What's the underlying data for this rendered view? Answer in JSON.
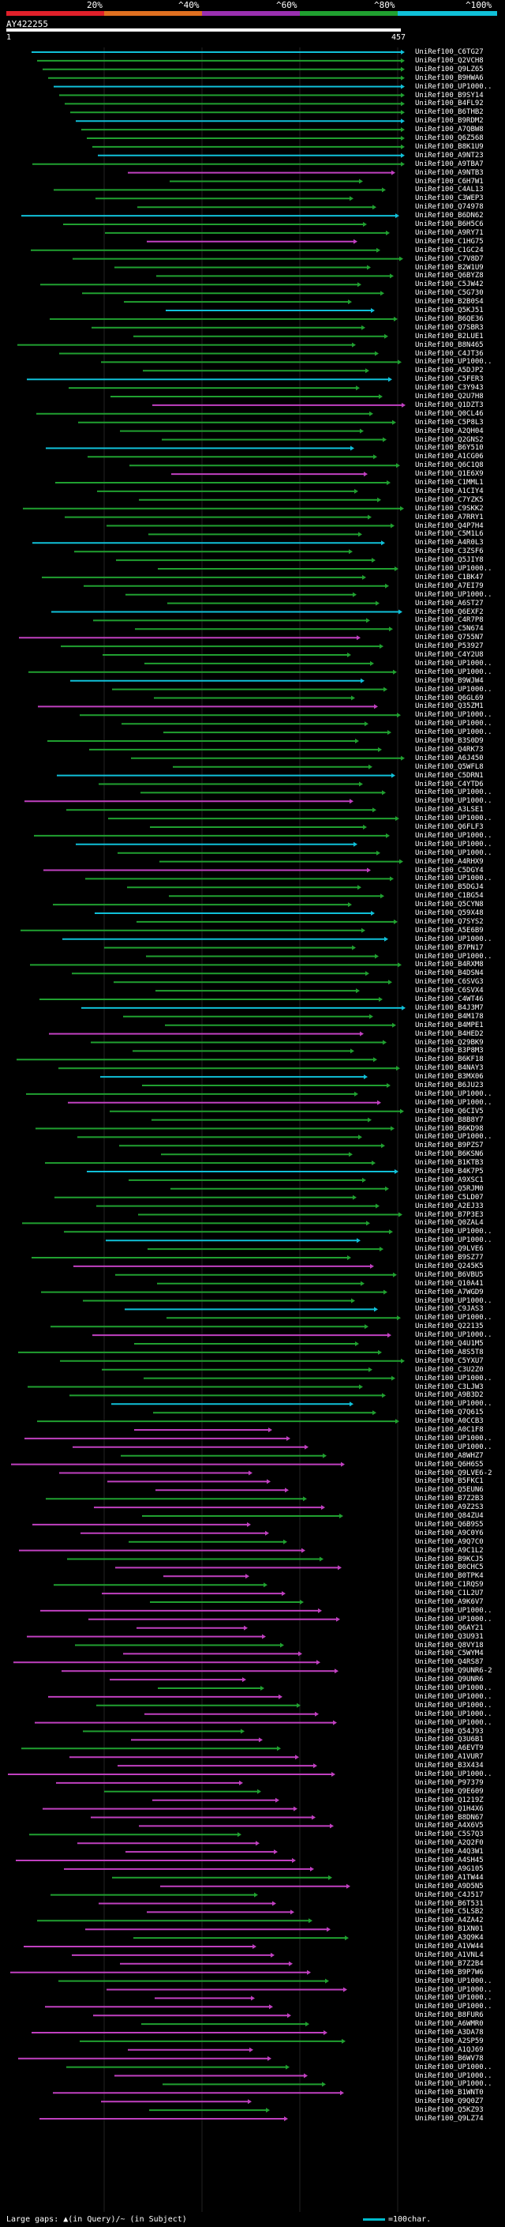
{
  "query": {
    "id": "AY422255",
    "start": "1",
    "end": "457"
  },
  "identity_scale": {
    "ticks": [
      "20%",
      "^40%",
      "^60%",
      "^80%",
      "^100%"
    ],
    "colors": [
      "#e0202a",
      "#e07020",
      "#9a30b0",
      "#20a030",
      "#10c0d8"
    ]
  },
  "hits": [
    "UniRef100_C6TG27",
    "UniRef100_Q2VCH8",
    "UniRef100_Q9LZ65",
    "UniRef100_B9HWA6",
    "UniRef100_UP1000..",
    "UniRef100_B9SY14",
    "UniRef100_B4FL92",
    "UniRef100_B6THB2",
    "UniRef100_B9RDM2",
    "UniRef100_A7QBW8",
    "UniRef100_Q6Z568",
    "UniRef100_B8K1U9",
    "UniRef100_A9NT23",
    "UniRef100_A9TBA7",
    "UniRef100_A9NTB3",
    "UniRef100_C6H7W1",
    "UniRef100_C4AL13",
    "UniRef100_C3WEP3",
    "UniRef100_Q74978",
    "UniRef100_B6DN62",
    "UniRef100_B6H5C6",
    "UniRef100_A9RY71",
    "UniRef100_C1HG75",
    "UniRef100_C1GC24",
    "UniRef100_C7V8D7",
    "UniRef100_B2W1U9",
    "UniRef100_Q6BYZ8",
    "UniRef100_C5JW42",
    "UniRef100_C5G730",
    "UniRef100_B2B0S4",
    "UniRef100_Q5KJ51",
    "UniRef100_B6QE36",
    "UniRef100_Q7SBR3",
    "UniRef100_B2LUE1",
    "UniRef100_B8N465",
    "UniRef100_C4JT36",
    "UniRef100_UP1000..",
    "UniRef100_A5DJP2",
    "UniRef100_C5FER3",
    "UniRef100_C3Y943",
    "UniRef100_Q2U7H8",
    "UniRef100_Q1DZT3",
    "UniRef100_Q0CL46",
    "UniRef100_C5P8L3",
    "UniRef100_A2QH04",
    "UniRef100_Q2GNS2",
    "UniRef100_B6Y510",
    "UniRef100_A1CG06",
    "UniRef100_Q6C1Q8",
    "UniRef100_Q1E6X9",
    "UniRef100_C1MML1",
    "UniRef100_A1CIY4",
    "UniRef100_C7YZK5",
    "UniRef100_C9SKK2",
    "UniRef100_A7RRY1",
    "UniRef100_Q4P7H4",
    "UniRef100_C5M1L6",
    "UniRef100_A4R0L3",
    "UniRef100_C3ZSF6",
    "UniRef100_Q5JIY8",
    "UniRef100_UP1000..",
    "UniRef100_C1BK47",
    "UniRef100_A7EI79",
    "UniRef100_UP1000..",
    "UniRef100_A6ST27",
    "UniRef100_Q6EXF2",
    "UniRef100_C4R7P8",
    "UniRef100_C5N674",
    "UniRef100_Q755N7",
    "UniRef100_P53927",
    "UniRef100_C4Y2U8",
    "UniRef100_UP1000..",
    "UniRef100_UP1000..",
    "UniRef100_B9WJW4",
    "UniRef100_UP1000..",
    "UniRef100_Q6GL69",
    "UniRef100_Q35ZM1",
    "UniRef100_UP1000..",
    "UniRef100_UP1000..",
    "UniRef100_UP1000..",
    "UniRef100_B3S0D9",
    "UniRef100_Q4RK73",
    "UniRef100_A6J450",
    "UniRef100_Q5WFL8",
    "UniRef100_C5DRN1",
    "UniRef100_C4YTD6",
    "UniRef100_UP1000..",
    "UniRef100_UP1000..",
    "UniRef100_A3LSE1",
    "UniRef100_UP1000..",
    "UniRef100_Q6FLF3",
    "UniRef100_UP1000..",
    "UniRef100_UP1000..",
    "UniRef100_UP1000..",
    "UniRef100_A4RHX9",
    "UniRef100_C5DGY4",
    "UniRef100_UP1000..",
    "UniRef100_B5DGJ4",
    "UniRef100_C1BG54",
    "UniRef100_Q5CYN8",
    "UniRef100_Q59X48",
    "UniRef100_Q7SYS2",
    "UniRef100_A5E6B9",
    "UniRef100_UP1000..",
    "UniRef100_B7PN17",
    "UniRef100_UP1000..",
    "UniRef100_B4RXM8",
    "UniRef100_B4DSN4",
    "UniRef100_C6SVG3",
    "UniRef100_C6SVX4",
    "UniRef100_C4WT46",
    "UniRef100_B4J3M7",
    "UniRef100_B4M178",
    "UniRef100_B4MPE1",
    "UniRef100_B4HED2",
    "UniRef100_Q29BK9",
    "UniRef100_B3P8M3",
    "UniRef100_B6KF18",
    "UniRef100_B4NAY3",
    "UniRef100_B3MX06",
    "UniRef100_B6JU23",
    "UniRef100_UP1000..",
    "UniRef100_UP1000..",
    "UniRef100_Q6CIV5",
    "UniRef100_B8B8Y7",
    "UniRef100_B6KD98",
    "UniRef100_UP1000..",
    "UniRef100_B9PZS7",
    "UniRef100_B6KSN6",
    "UniRef100_B1KTB3",
    "UniRef100_B4K7P5",
    "UniRef100_A9XSC1",
    "UniRef100_Q5RJM0",
    "UniRef100_C5LD07",
    "UniRef100_A2EJ33",
    "UniRef100_B7P3E3",
    "UniRef100_Q0ZAL4",
    "UniRef100_UP1000..",
    "UniRef100_UP1000..",
    "UniRef100_Q9LVE6",
    "UniRef100_B9SZ77",
    "UniRef100_Q245K5",
    "UniRef100_B6VBU5",
    "UniRef100_Q10A41",
    "UniRef100_A7WGD9",
    "UniRef100_UP1000..",
    "UniRef100_C9JAS3",
    "UniRef100_UP1000..",
    "UniRef100_Q22135",
    "UniRef100_UP1000..",
    "UniRef100_Q4U1M5",
    "UniRef100_A8S5T8",
    "UniRef100_C5YXU7",
    "UniRef100_C3U2Z0",
    "UniRef100_UP1000..",
    "UniRef100_C3LJW3",
    "UniRef100_A9B3D2",
    "UniRef100_UP1000..",
    "UniRef100_Q7Q615",
    "UniRef100_A0CCB3",
    "UniRef100_A0C1F8",
    "UniRef100_UP1000..",
    "UniRef100_UP1000..",
    "UniRef100_A8WHZ7",
    "UniRef100_Q6H6S5",
    "UniRef100_Q9LVE6-2",
    "UniRef100_B5FKC1",
    "UniRef100_Q5EUN6",
    "UniRef100_B7Z2B3",
    "UniRef100_A9Z2S3",
    "UniRef100_Q84ZU4",
    "UniRef100_Q6B9S5",
    "UniRef100_A9C0Y6",
    "UniRef100_A9Q7C0",
    "UniRef100_A9C1L2",
    "UniRef100_B9KCJ5",
    "UniRef100_B0CHC5",
    "UniRef100_B0TPK4",
    "UniRef100_C1RQS9",
    "UniRef100_C1L2U7",
    "UniRef100_A9K6V7",
    "UniRef100_UP1000..",
    "UniRef100_UP1000..",
    "UniRef100_Q6AY21",
    "UniRef100_Q3U931",
    "UniRef100_Q8VY18",
    "UniRef100_C5WYM4",
    "UniRef100_Q4RS87",
    "UniRef100_Q9UNR6-2",
    "UniRef100_Q9UNR6",
    "UniRef100_UP1000..",
    "UniRef100_UP1000..",
    "UniRef100_UP1000..",
    "UniRef100_UP1000..",
    "UniRef100_UP1000..",
    "UniRef100_Q54J93",
    "UniRef100_Q3U6B1",
    "UniRef100_A6EVT9",
    "UniRef100_A1VUR7",
    "UniRef100_B3X434",
    "UniRef100_UP1000..",
    "UniRef100_P97379",
    "UniRef100_Q9E609",
    "UniRef100_Q1219Z",
    "UniRef100_Q1H4X6",
    "UniRef100_B8DN67",
    "UniRef100_A4X6V5",
    "UniRef100_C5S7Q3",
    "UniRef100_A2Q2F0",
    "UniRef100_A4Q3W1",
    "UniRef100_A4SH45",
    "UniRef100_A9G105",
    "UniRef100_A1TW44",
    "UniRef100_A9D5N5",
    "UniRef100_C4J517",
    "UniRef100_B6T531",
    "UniRef100_C5LSB2",
    "UniRef100_A4ZA42",
    "UniRef100_B1XN01",
    "UniRef100_A3Q9K4",
    "UniRef100_A1VW44",
    "UniRef100_A1VNL4",
    "UniRef100_B7Z2B4",
    "UniRef100_B9P7W6",
    "UniRef100_UP1000..",
    "UniRef100_UP1000..",
    "UniRef100_UP1000..",
    "UniRef100_UP1000..",
    "UniRef100_B8FUR6",
    "UniRef100_A6WMR0",
    "UniRef100_A3DA78",
    "UniRef100_A2SP59",
    "UniRef100_A1QJ69",
    "UniRef100_B6WV78",
    "UniRef100_UP1000..",
    "UniRef100_UP1000..",
    "UniRef100_UP1000..",
    "UniRef100_B1WNT0",
    "UniRef100_Q9Q0Z7",
    "UniRef100_Q5KZ93",
    "UniRef100_Q9LZ74"
  ],
  "footer": {
    "legend_text": "Large gaps: ▲(in Query)/~ (in Subject)",
    "scale_text": "=100char."
  }
}
